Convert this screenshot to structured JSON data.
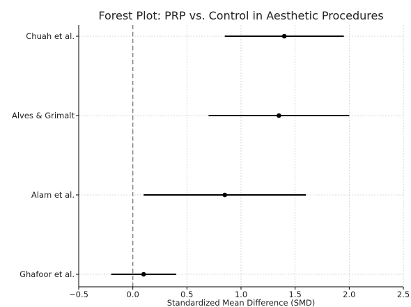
{
  "chart_data": {
    "type": "forest",
    "title": "Forest Plot: PRP vs. Control in Aesthetic Procedures",
    "xlabel": "Standardized Mean Difference (SMD)",
    "ylabel": "",
    "xlim": [
      -0.5,
      2.5
    ],
    "xticks": [
      -0.5,
      0.0,
      0.5,
      1.0,
      1.5,
      2.0,
      2.5
    ],
    "xtick_labels": [
      "−0.5",
      "0.0",
      "0.5",
      "1.0",
      "1.5",
      "2.0",
      "2.5"
    ],
    "reference_line": 0,
    "grid": true,
    "studies": [
      {
        "label": "Chuah et al.",
        "smd": 1.4,
        "ci_low": 0.85,
        "ci_high": 1.95
      },
      {
        "label": "Alves & Grimalt",
        "smd": 1.35,
        "ci_low": 0.7,
        "ci_high": 2.0
      },
      {
        "label": "Alam et al.",
        "smd": 0.85,
        "ci_low": 0.1,
        "ci_high": 1.6
      },
      {
        "label": "Ghafoor et al.",
        "smd": 0.1,
        "ci_low": -0.2,
        "ci_high": 0.4
      }
    ],
    "colors": {
      "marker": "#000000",
      "ci_line": "#000000",
      "reference_line": "#808080",
      "grid": "#cccccc"
    }
  }
}
